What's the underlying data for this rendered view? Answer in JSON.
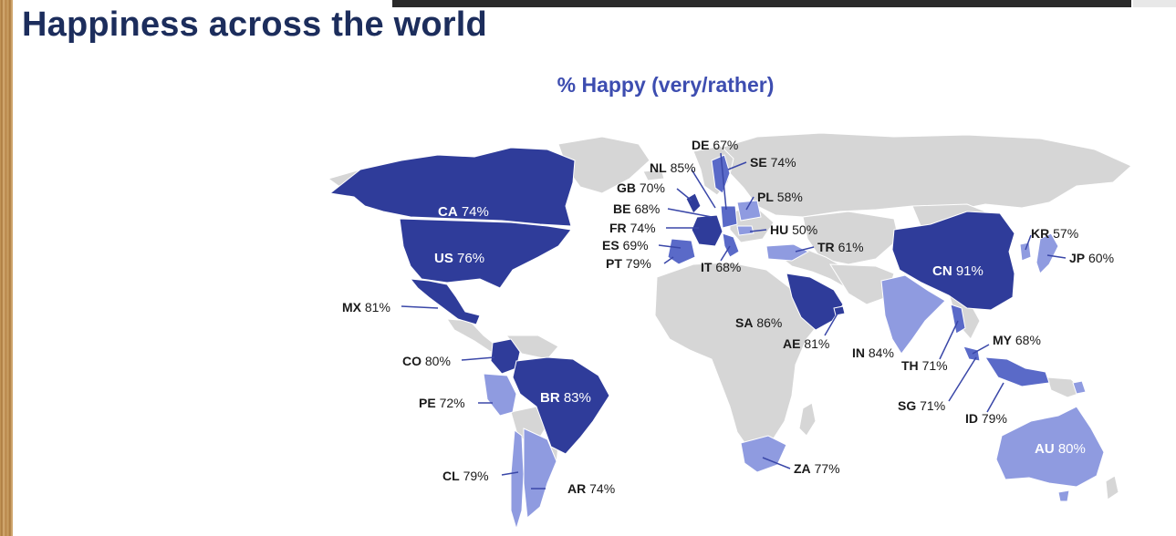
{
  "title": "Happiness across the world",
  "subtitle": "% Happy (very/rather)",
  "colors": {
    "dark": "#2f3c9a",
    "mid": "#5a6ac8",
    "light": "#8f9be0",
    "land": "#d6d6d6",
    "leader": "#3a47a8"
  },
  "countries": [
    {
      "code": "CA",
      "value": "74%"
    },
    {
      "code": "US",
      "value": "76%"
    },
    {
      "code": "MX",
      "value": "81%"
    },
    {
      "code": "CO",
      "value": "80%"
    },
    {
      "code": "PE",
      "value": "72%"
    },
    {
      "code": "BR",
      "value": "83%"
    },
    {
      "code": "CL",
      "value": "79%"
    },
    {
      "code": "AR",
      "value": "74%"
    },
    {
      "code": "DE",
      "value": "67%"
    },
    {
      "code": "NL",
      "value": "85%"
    },
    {
      "code": "SE",
      "value": "74%"
    },
    {
      "code": "GB",
      "value": "70%"
    },
    {
      "code": "BE",
      "value": "68%"
    },
    {
      "code": "PL",
      "value": "58%"
    },
    {
      "code": "FR",
      "value": "74%"
    },
    {
      "code": "HU",
      "value": "50%"
    },
    {
      "code": "ES",
      "value": "69%"
    },
    {
      "code": "TR",
      "value": "61%"
    },
    {
      "code": "PT",
      "value": "79%"
    },
    {
      "code": "IT",
      "value": "68%"
    },
    {
      "code": "SA",
      "value": "86%"
    },
    {
      "code": "AE",
      "value": "81%"
    },
    {
      "code": "IN",
      "value": "84%"
    },
    {
      "code": "TH",
      "value": "71%"
    },
    {
      "code": "MY",
      "value": "68%"
    },
    {
      "code": "SG",
      "value": "71%"
    },
    {
      "code": "ID",
      "value": "79%"
    },
    {
      "code": "CN",
      "value": "91%"
    },
    {
      "code": "KR",
      "value": "57%"
    },
    {
      "code": "JP",
      "value": "60%"
    },
    {
      "code": "ZA",
      "value": "77%"
    },
    {
      "code": "AU",
      "value": "80%"
    }
  ]
}
